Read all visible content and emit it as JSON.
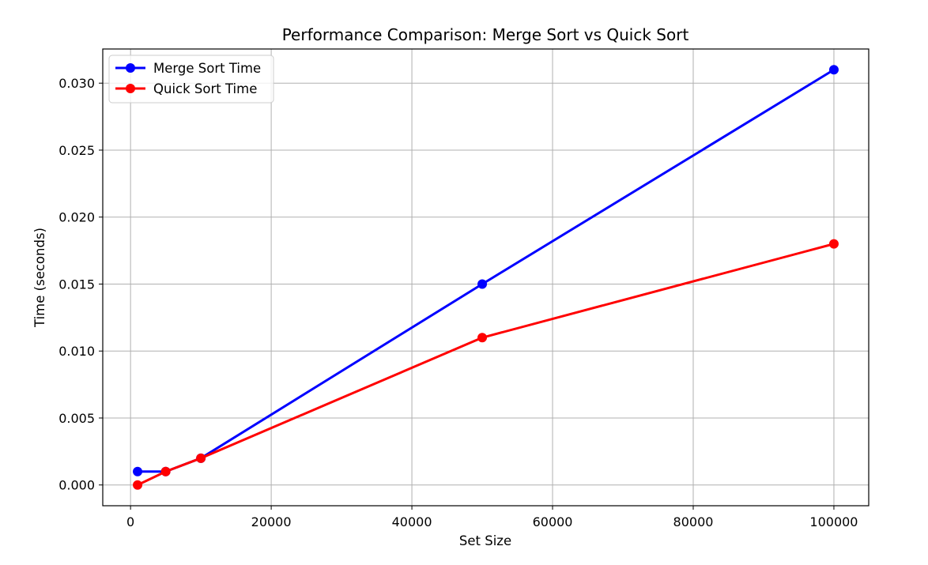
{
  "chart_data": {
    "type": "line",
    "title": "Performance Comparison: Merge Sort vs Quick Sort",
    "xlabel": "Set Size",
    "ylabel": "Time (seconds)",
    "x": [
      1000,
      5000,
      10000,
      50000,
      100000
    ],
    "series": [
      {
        "name": "Merge Sort Time",
        "color": "#0000ff",
        "values": [
          0.001,
          0.001,
          0.002,
          0.015,
          0.031
        ]
      },
      {
        "name": "Quick Sort Time",
        "color": "#ff0000",
        "values": [
          0.0,
          0.001,
          0.002,
          0.011,
          0.018
        ]
      }
    ],
    "xlim": [
      -3950,
      104950
    ],
    "ylim": [
      -0.00155,
      0.03255
    ],
    "xticks": [
      0,
      20000,
      40000,
      60000,
      80000,
      100000
    ],
    "xtick_labels": [
      "0",
      "20000",
      "40000",
      "60000",
      "80000",
      "100000"
    ],
    "yticks": [
      0.0,
      0.005,
      0.01,
      0.015,
      0.02,
      0.025,
      0.03
    ],
    "ytick_labels": [
      "0.000",
      "0.005",
      "0.010",
      "0.015",
      "0.020",
      "0.025",
      "0.030"
    ],
    "grid": true,
    "legend_position": "top-left",
    "marker": "circle"
  }
}
